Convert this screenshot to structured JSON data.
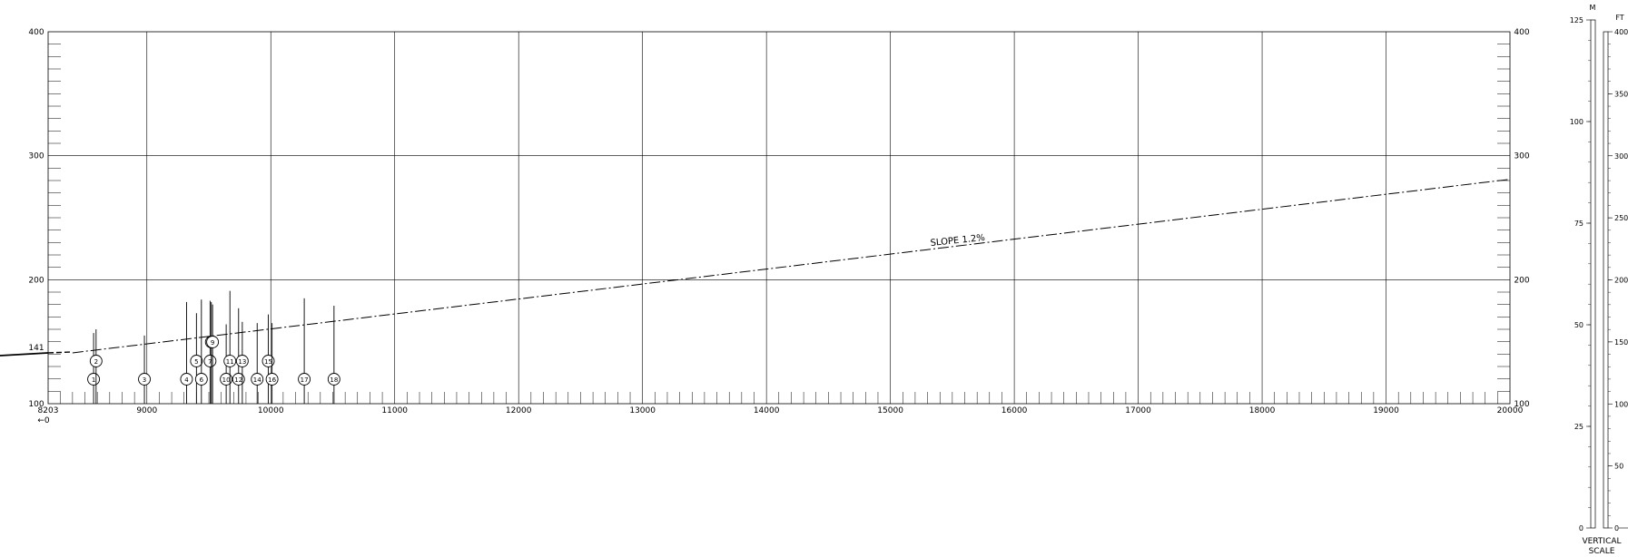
{
  "chart_data": {
    "type": "line",
    "x_axis": {
      "range": [
        8203,
        20000
      ],
      "start_label": "8203",
      "start_marker": "←0",
      "ticks": [
        9000,
        10000,
        11000,
        12000,
        13000,
        14000,
        15000,
        16000,
        17000,
        18000,
        19000,
        20000
      ],
      "tick_labels": [
        "9000",
        "10000",
        "11000",
        "12000",
        "13000",
        "14000",
        "15000",
        "16000",
        "17000",
        "18000",
        "19000",
        "20000"
      ]
    },
    "y_axis": {
      "range": [
        100,
        400
      ],
      "ticks": [
        100,
        200,
        300,
        400
      ],
      "tick_labels": [
        "100",
        "200",
        "300",
        "400"
      ],
      "ground_label": "141"
    },
    "slope_line": {
      "label": "SLOPE 1.2%",
      "start": [
        8400,
        141
      ],
      "end": [
        20000,
        281
      ]
    },
    "obstacles": [
      {
        "id": "1",
        "x": 8570,
        "height": 157
      },
      {
        "id": "2",
        "x": 8590,
        "height": 160
      },
      {
        "id": "3",
        "x": 8980,
        "height": 155
      },
      {
        "id": "4",
        "x": 9320,
        "height": 182
      },
      {
        "id": "5",
        "x": 9400,
        "height": 173
      },
      {
        "id": "6",
        "x": 9440,
        "height": 184
      },
      {
        "id": "7",
        "x": 9510,
        "height": 183
      },
      {
        "id": "8",
        "x": 9520,
        "height": 182
      },
      {
        "id": "9",
        "x": 9530,
        "height": 180
      },
      {
        "id": "10",
        "x": 9640,
        "height": 164
      },
      {
        "id": "11",
        "x": 9670,
        "height": 191
      },
      {
        "id": "12",
        "x": 9740,
        "height": 177
      },
      {
        "id": "13",
        "x": 9770,
        "height": 166
      },
      {
        "id": "14",
        "x": 9890,
        "height": 165
      },
      {
        "id": "15",
        "x": 9980,
        "height": 172
      },
      {
        "id": "16",
        "x": 10010,
        "height": 165
      },
      {
        "id": "17",
        "x": 10270,
        "height": 185
      },
      {
        "id": "18",
        "x": 10510,
        "height": 179
      }
    ],
    "grid": true
  },
  "vertical_scale": {
    "title_line1": "VERTICAL",
    "title_line2": "SCALE",
    "m_header": "M",
    "ft_header": "FT",
    "m_labels": [
      "125",
      "100",
      "75",
      "50",
      "25",
      "0"
    ],
    "ft_labels": [
      "400",
      "350",
      "300",
      "250",
      "200",
      "150",
      "100",
      "50",
      "0"
    ]
  }
}
